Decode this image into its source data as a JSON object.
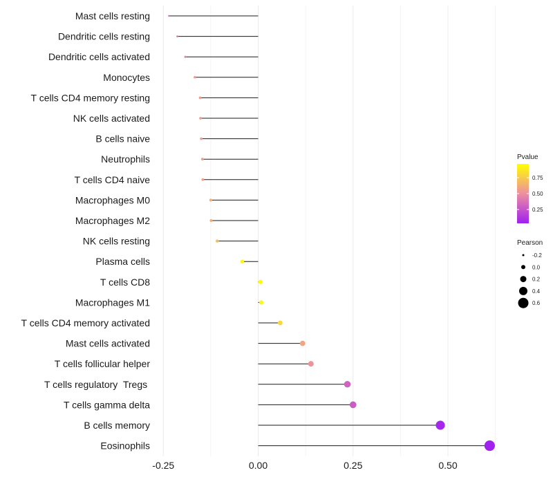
{
  "chart_data": {
    "type": "lollipop",
    "title": "",
    "xlabel": "",
    "ylabel": "",
    "xlim": [
      -0.28,
      0.64
    ],
    "x_ticks": [
      -0.25,
      0.0,
      0.25,
      0.5
    ],
    "x_tick_labels": [
      "-0.25",
      "0.00",
      "0.25",
      "0.50"
    ],
    "grid": true,
    "categories": [
      "Mast cells resting",
      "Dendritic cells resting",
      "Dendritic cells activated",
      "Monocytes",
      "T cells CD4 memory resting",
      "NK cells activated",
      "B cells naive",
      "Neutrophils",
      "T cells CD4 naive",
      "Macrophages M0",
      "Macrophages M2",
      "NK cells resting",
      "Plasma cells",
      "T cells CD8",
      "Macrophages M1",
      "T cells CD4 memory activated",
      "Mast cells activated",
      "T cells follicular helper",
      "T cells regulatory  Tregs ",
      "T cells gamma delta",
      "B cells memory",
      "Eosinophils"
    ],
    "pearson": [
      -0.235,
      -0.213,
      -0.192,
      -0.167,
      -0.153,
      -0.152,
      -0.15,
      -0.147,
      -0.146,
      -0.125,
      -0.124,
      -0.108,
      -0.042,
      0.006,
      0.008,
      0.058,
      0.117,
      0.139,
      0.235,
      0.25,
      0.48,
      0.61
    ],
    "pvalue": [
      0.3,
      0.38,
      0.45,
      0.55,
      0.56,
      0.56,
      0.56,
      0.57,
      0.57,
      0.64,
      0.64,
      0.7,
      0.95,
      0.98,
      0.97,
      0.82,
      0.6,
      0.52,
      0.3,
      0.27,
      0.03,
      0.005
    ],
    "color_legend": {
      "title": "Pvalue",
      "ticks": [
        0.75,
        0.5,
        0.25
      ],
      "tick_labels": [
        "0.75",
        "0.50",
        "0.25"
      ],
      "low_color": "#a020f0",
      "mid_color": "#ee8fa0",
      "high_color": "#ffff00"
    },
    "size_legend": {
      "title": "Pearson",
      "values": [
        -0.2,
        0.0,
        0.2,
        0.4,
        0.6
      ],
      "labels": [
        "-0.2",
        "0.0",
        "0.2",
        "0.4",
        "0.6"
      ]
    }
  }
}
